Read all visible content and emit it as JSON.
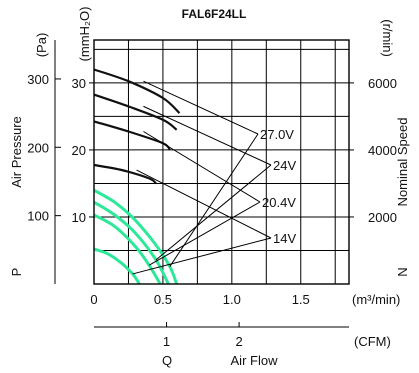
{
  "chart_data": {
    "type": "line",
    "title": "FAL6F24LL",
    "xlabel": "Air Flow",
    "x_symbol": "Q",
    "x_unit_metric": "(m³/min)",
    "x_unit_imperial": "(CFM)",
    "x_ticks_metric": [
      "0",
      "0.5",
      "1.0",
      "1.5"
    ],
    "x_ticks_imperial": [
      "1",
      "2"
    ],
    "xlim": [
      0,
      1.85
    ],
    "ylabel_left": "Air Pressure",
    "y_symbol_left": "P",
    "y_unit_pa": "(Pa)",
    "y_unit_mmh2o": "(mmH₂O)",
    "y_ticks_pa": [
      "100",
      "200",
      "300"
    ],
    "y_ticks_mmh2o": [
      "10",
      "20",
      "30"
    ],
    "ylim_mmh2o": [
      0,
      36.4
    ],
    "ylabel_right": "Nominal Speed",
    "y_symbol_right": "N",
    "y_unit_right": "(r/min)",
    "y_ticks_right": [
      "2000",
      "4000",
      "6000"
    ],
    "ylim_rpm": [
      0,
      7280
    ],
    "grid": true,
    "colors": {
      "speed": "#111111",
      "pressure": "#2ee89a"
    },
    "series": [
      {
        "name": "27.0V",
        "kind": "speed",
        "x": [
          0,
          0.25,
          0.5,
          0.62
        ],
        "y": [
          6400,
          6050,
          5550,
          5100
        ]
      },
      {
        "name": "24V",
        "kind": "speed",
        "x": [
          0,
          0.25,
          0.5,
          0.6
        ],
        "y": [
          5650,
          5300,
          4900,
          4600
        ]
      },
      {
        "name": "20.4V",
        "kind": "speed",
        "x": [
          0,
          0.25,
          0.5,
          0.55
        ],
        "y": [
          4850,
          4550,
          4200,
          4000
        ]
      },
      {
        "name": "14V",
        "kind": "speed",
        "x": [
          0,
          0.2,
          0.4,
          0.45
        ],
        "y": [
          3550,
          3400,
          3150,
          3000
        ]
      },
      {
        "name": "27.0V",
        "kind": "pressure",
        "x": [
          0,
          0.15,
          0.3,
          0.45,
          0.55,
          0.6
        ],
        "y": [
          14,
          12.2,
          9.5,
          5.8,
          2.6,
          0
        ]
      },
      {
        "name": "24V",
        "kind": "pressure",
        "x": [
          0,
          0.15,
          0.3,
          0.45,
          0.54
        ],
        "y": [
          12.2,
          10.3,
          7.6,
          3.6,
          0
        ]
      },
      {
        "name": "20.4V",
        "kind": "pressure",
        "x": [
          0,
          0.15,
          0.3,
          0.4,
          0.48
        ],
        "y": [
          10.3,
          8.6,
          5.6,
          2.8,
          0
        ]
      },
      {
        "name": "14V",
        "kind": "pressure",
        "x": [
          0,
          0.1,
          0.2,
          0.28,
          0.33
        ],
        "y": [
          5.2,
          4.5,
          3.1,
          1.5,
          0
        ]
      }
    ]
  }
}
